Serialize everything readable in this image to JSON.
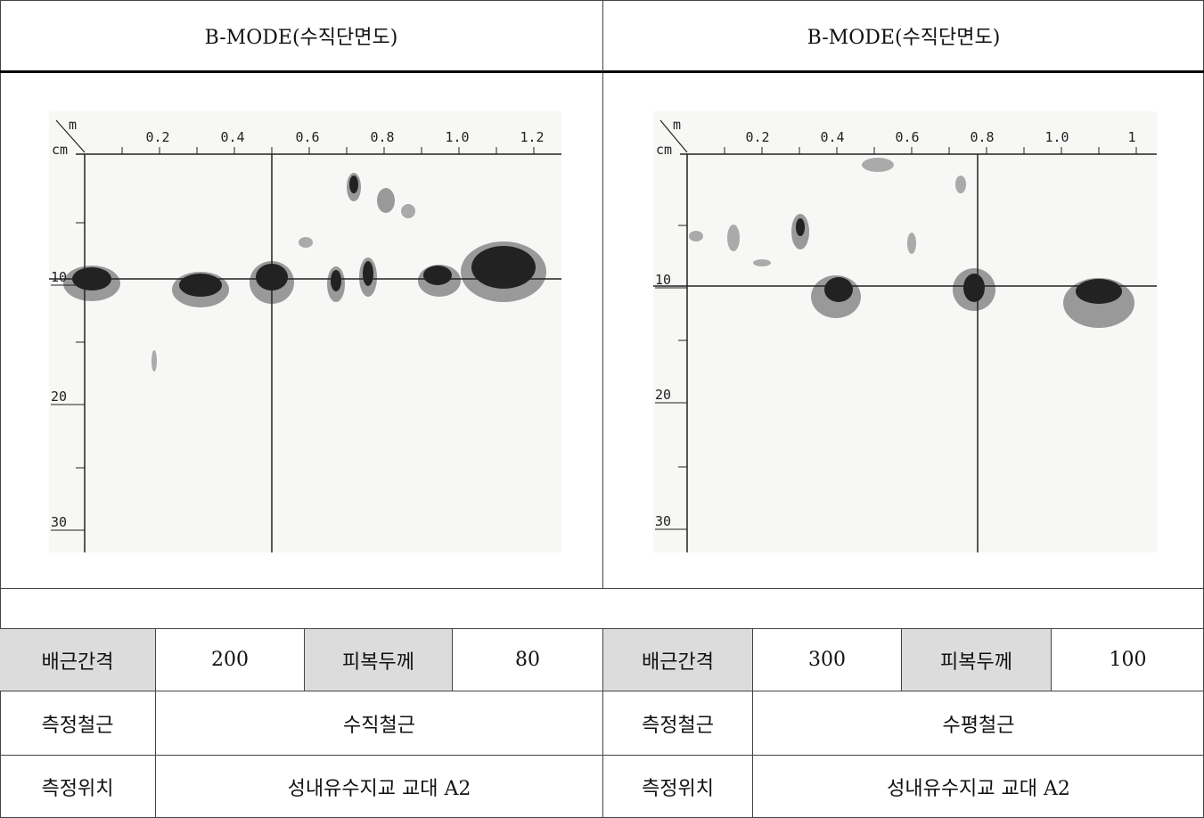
{
  "header": {
    "left": "B-MODE(수직단면도)",
    "right": "B-MODE(수직단면도)"
  },
  "scans": [
    {
      "x_unit": "m",
      "y_unit": "cm",
      "x_labels": [
        "0.2",
        "0.4",
        "0.6",
        "0.8",
        "1.0",
        "1.2"
      ],
      "y_labels": [
        "10",
        "20",
        "30"
      ]
    },
    {
      "x_unit": "m",
      "y_unit": "cm",
      "x_labels": [
        "0.2",
        "0.4",
        "0.6",
        "0.8",
        "1.0",
        "1"
      ],
      "y_labels": [
        "10",
        "20",
        "30"
      ]
    }
  ],
  "table": {
    "rows": [
      [
        "배근간격",
        "200",
        "피복두께",
        "80",
        "배근간격",
        "300",
        "피복두께",
        "100"
      ],
      [
        "측정철근",
        "수직철근",
        "측정철근",
        "수평철근"
      ],
      [
        "측정위치",
        "성내유수지교 교대 A2",
        "측정위치",
        "성내유수지교 교대 A2"
      ]
    ]
  }
}
